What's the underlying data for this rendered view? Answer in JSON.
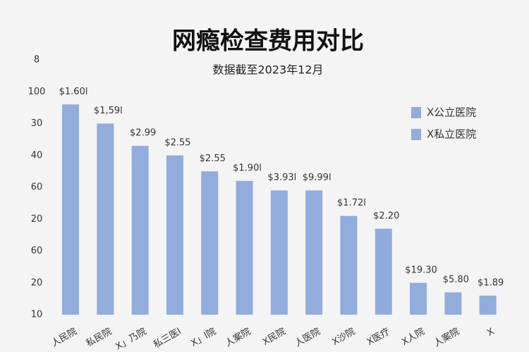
{
  "chart_data": {
    "type": "bar",
    "title": "网瘾检查费用对比",
    "subtitle": "数据截至2023年12月",
    "categories": [
      "人民院",
      "私民院",
      "X」乃院",
      "私三医l",
      "X」l院",
      "人案院",
      "X民院",
      "人医院",
      "X沙院",
      "X医疗",
      "X人院",
      "人案院",
      "X"
    ],
    "values": [
      76,
      70,
      63,
      60,
      55,
      52,
      49,
      49,
      41,
      37,
      20,
      17,
      16
    ],
    "annotations": [
      "$1.60l",
      "$1,59l",
      "$2.99",
      "$2.55",
      "$2.55",
      "$1.90l",
      "$3.93l",
      "$9.99l",
      "$1.72l",
      "$2.20",
      "$19.30",
      "$5.80",
      "$1.89"
    ],
    "color": "#92acdc",
    "legend": [
      {
        "name": "X公立医院",
        "color": "#92acdc"
      },
      {
        "name": "X私立医院",
        "color": "#92acdc"
      }
    ],
    "legend_position": "upper right",
    "ylim": [
      10,
      90
    ],
    "yticks": [
      {
        "value": 90,
        "label": "8"
      },
      {
        "value": 80,
        "label": "100"
      },
      {
        "value": 70,
        "label": "30"
      },
      {
        "value": 60,
        "label": "40"
      },
      {
        "value": 50,
        "label": "60"
      },
      {
        "value": 40,
        "label": "20"
      },
      {
        "value": 30,
        "label": "60"
      },
      20,
      10
    ],
    "grid": false
  }
}
